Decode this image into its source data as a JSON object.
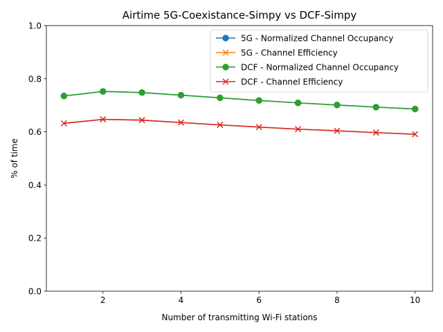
{
  "chart_data": {
    "type": "line",
    "title": "Airtime 5G-Coexistance-Simpy vs DCF-Simpy",
    "xlabel": "Number of transmitting Wi-Fi stations",
    "ylabel": "% of time",
    "xlim": [
      0.55,
      10.45
    ],
    "ylim": [
      0.0,
      1.0
    ],
    "xticks": [
      2,
      4,
      6,
      8,
      10
    ],
    "yticks": [
      0.0,
      0.2,
      0.4,
      0.6,
      0.8,
      1.0
    ],
    "xtick_labels": [
      "2",
      "4",
      "6",
      "8",
      "10"
    ],
    "ytick_labels": [
      "0.0",
      "0.2",
      "0.4",
      "0.6",
      "0.8",
      "1.0"
    ],
    "grid": false,
    "legend_position": "top-right",
    "x": [
      1,
      2,
      3,
      4,
      5,
      6,
      7,
      8,
      9,
      10
    ],
    "series": [
      {
        "name": "5G - Normalized Channel Occupancy",
        "marker": "circle",
        "color": "#1f77b4",
        "values": [
          0.735,
          0.752,
          0.748,
          0.738,
          0.728,
          0.718,
          0.709,
          0.701,
          0.693,
          0.686
        ]
      },
      {
        "name": "5G - Channel Efficiency",
        "marker": "x",
        "color": "#ff7f0e",
        "values": [
          0.632,
          0.647,
          0.644,
          0.635,
          0.626,
          0.618,
          0.61,
          0.604,
          0.597,
          0.591
        ]
      },
      {
        "name": "DCF - Normalized Channel Occupancy",
        "marker": "circle",
        "color": "#2ca02c",
        "values": [
          0.735,
          0.752,
          0.748,
          0.738,
          0.728,
          0.718,
          0.709,
          0.701,
          0.693,
          0.686
        ]
      },
      {
        "name": "DCF - Channel Efficiency",
        "marker": "x",
        "color": "#d62728",
        "values": [
          0.632,
          0.647,
          0.644,
          0.635,
          0.626,
          0.618,
          0.61,
          0.604,
          0.597,
          0.591
        ]
      }
    ]
  }
}
